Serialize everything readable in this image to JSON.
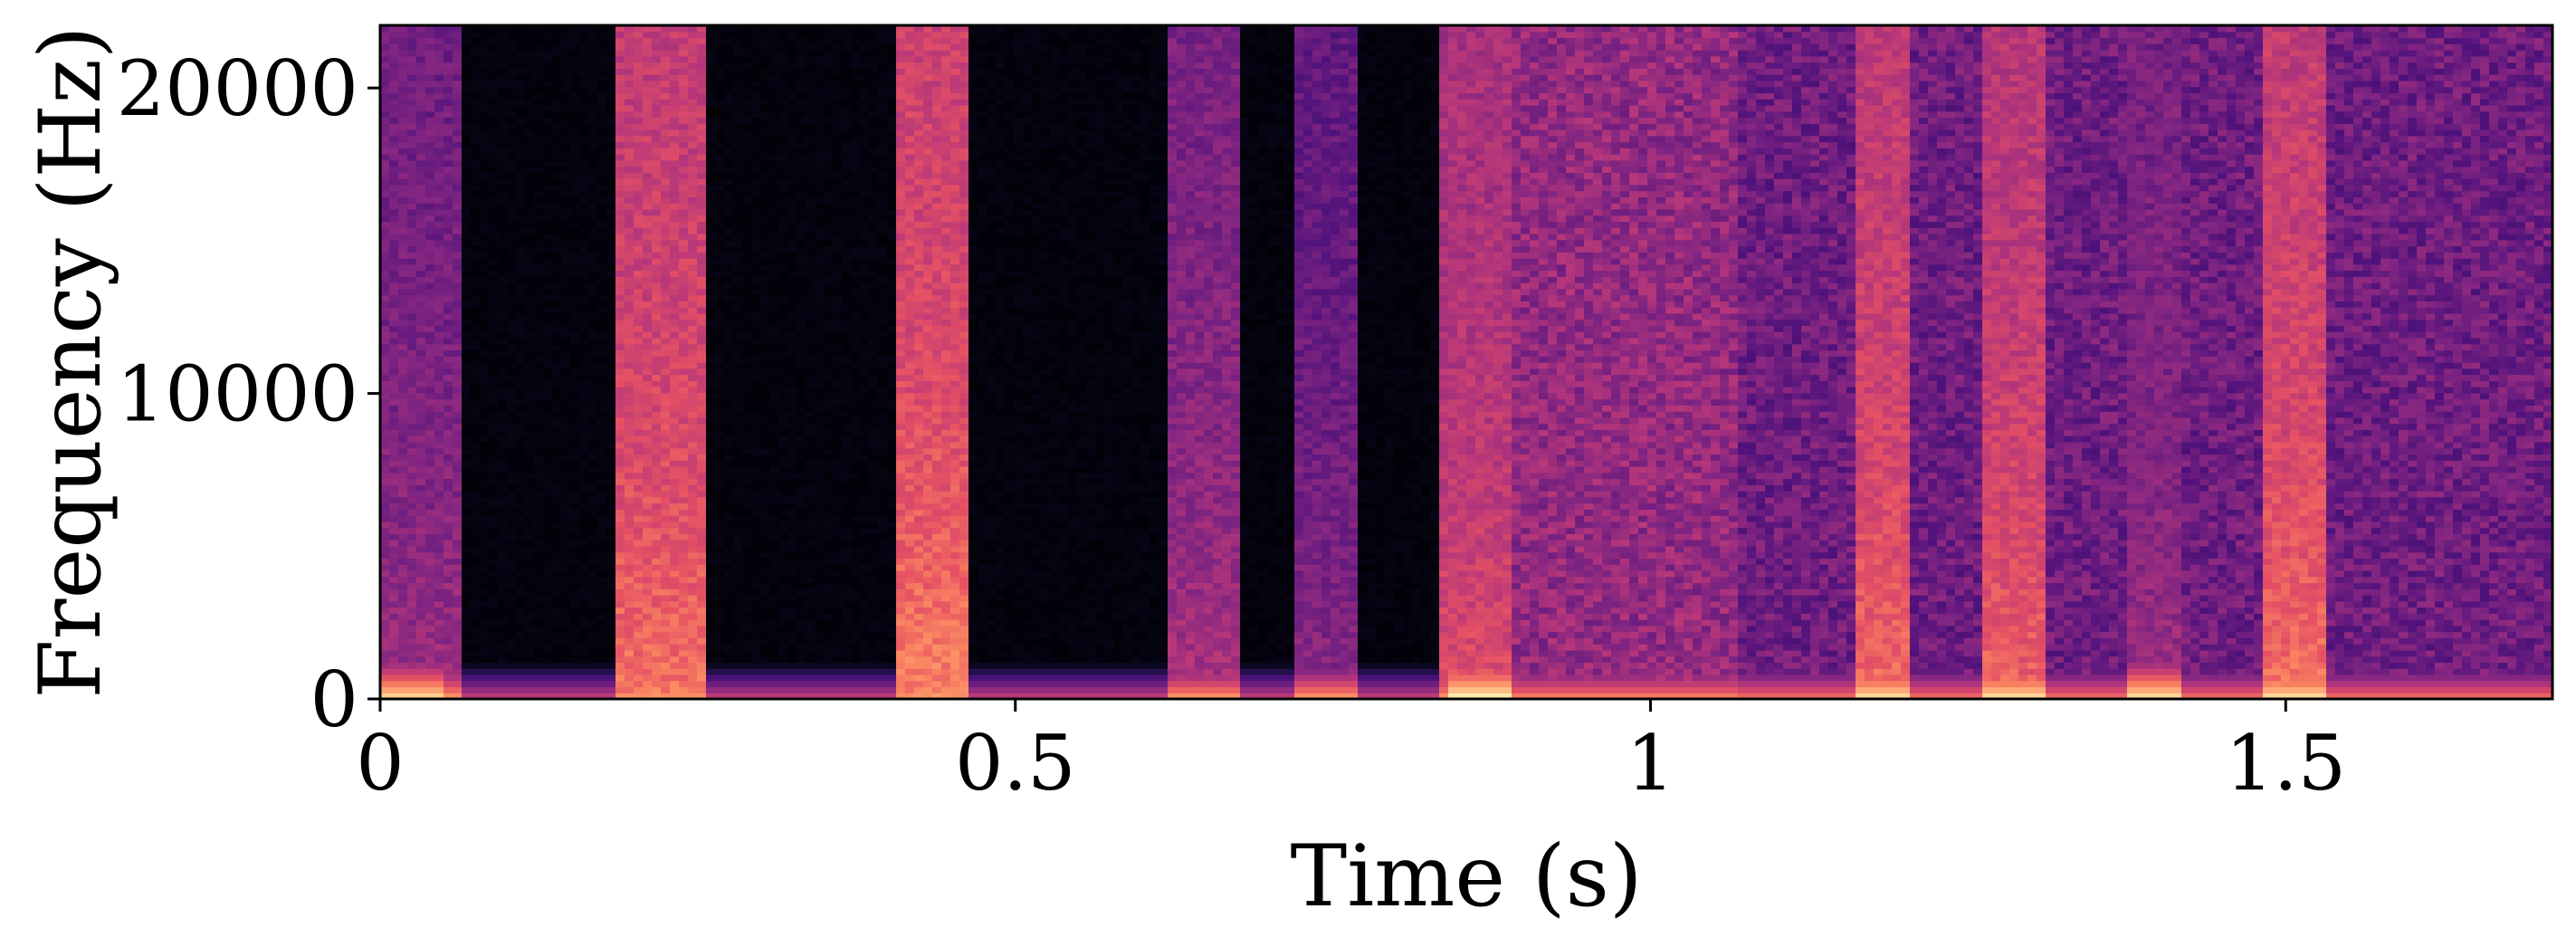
{
  "chart_data": {
    "type": "heatmap",
    "title": "",
    "xlabel": "Time (s)",
    "ylabel": "Frequency (Hz)",
    "xlim": [
      0,
      1.71
    ],
    "ylim": [
      0,
      22050
    ],
    "xticks": [
      0,
      0.5,
      1,
      1.5
    ],
    "xtick_labels": [
      "0",
      "0.5",
      "1",
      "1.5"
    ],
    "yticks": [
      0,
      10000,
      20000
    ],
    "ytick_labels": [
      "0",
      "10000",
      "20000"
    ],
    "colormap": "magma",
    "grid": false,
    "legend": "none",
    "background_segments": [
      {
        "t_start": 0.0,
        "t_end": 0.05,
        "level": 0.3
      },
      {
        "t_start": 0.05,
        "t_end": 0.84,
        "level": 0.02
      },
      {
        "t_start": 0.84,
        "t_end": 1.07,
        "level": 0.42
      },
      {
        "t_start": 1.07,
        "t_end": 1.71,
        "level": 0.33
      }
    ],
    "onsets": [
      {
        "t_start": 0.0,
        "t_end": 0.05,
        "intensity": 0.45
      },
      {
        "t_start": 0.195,
        "t_end": 0.245,
        "intensity": 0.72
      },
      {
        "t_start": 0.415,
        "t_end": 0.455,
        "intensity": 0.75
      },
      {
        "t_start": 0.625,
        "t_end": 0.665,
        "intensity": 0.48
      },
      {
        "t_start": 0.73,
        "t_end": 0.76,
        "intensity": 0.4
      },
      {
        "t_start": 0.84,
        "t_end": 0.88,
        "intensity": 0.62
      },
      {
        "t_start": 1.165,
        "t_end": 1.195,
        "intensity": 0.7
      },
      {
        "t_start": 1.27,
        "t_end": 1.3,
        "intensity": 0.68
      },
      {
        "t_start": 1.385,
        "t_end": 1.41,
        "intensity": 0.45
      },
      {
        "t_start": 1.49,
        "t_end": 1.52,
        "intensity": 0.72
      }
    ],
    "low_frequency_band": {
      "f_max": 1200,
      "intensity": 0.55
    }
  }
}
